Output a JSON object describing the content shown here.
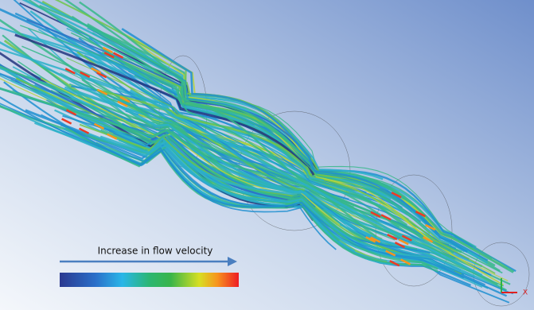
{
  "legend": {
    "label": "Increase in flow velocity"
  },
  "axes": {
    "x_label": "X"
  }
}
